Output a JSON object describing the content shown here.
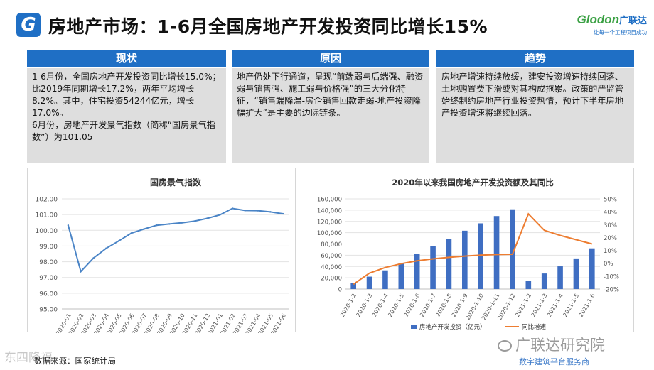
{
  "header": {
    "logo_letter": "G",
    "title": "房地产市场：1-6月全国房地产开发投资同比增长15%",
    "brand_name": "Glodon",
    "brand_cn": "广联达",
    "brand_slogan": "让每一个工程项目成功"
  },
  "columns": [
    {
      "heading": "现状",
      "paragraphs": [
        "1-6月份，全国房地产开发投资同比增长15.0%；比2019年同期增长17.2%，两年平均增长8.2%。其中，住宅投资54244亿元，增长17.0%。",
        "6月份，房地产开发景气指数（简称“国房景气指数”）为101.05"
      ]
    },
    {
      "heading": "原因",
      "paragraphs": [
        "地产仍处下行通道，呈现“前端弱与后端强、融资弱与销售强、施工弱与价格强”的三大分化特征，“销售端降温-房企销售回款走弱-地产投资降幅扩大”是主要的边际链条。"
      ]
    },
    {
      "heading": "趋势",
      "paragraphs": [
        "房地产增速持续放缓，建安投资增速持续回落、土地购置费下滑或对其构成拖累。政策的严监管始终制约房地产行业投资热情，预计下半年房地产投资增速将继续回落。"
      ]
    }
  ],
  "footer": {
    "source": "数据来源：国家统计局",
    "watermark_left": "东四降福",
    "watermark_right": "广联达研究院",
    "watermark_right_sub": "数字建筑平台服务商"
  },
  "chart_data": [
    {
      "type": "line",
      "title": "国房景气指数",
      "categories": [
        "2020-01",
        "2020-02",
        "2020-03",
        "2020-04",
        "2020-05",
        "2020-06",
        "2020-07",
        "2020-08",
        "2020-09",
        "2020-10",
        "2020-11",
        "2020-12",
        "2021-01",
        "2021-02",
        "2021-03",
        "2021-04",
        "2021-05",
        "2021-06"
      ],
      "series": [
        {
          "values": [
            100.32,
            97.38,
            98.23,
            98.85,
            99.32,
            99.82,
            100.08,
            100.32,
            100.4,
            100.48,
            100.58,
            100.76,
            100.98,
            101.39,
            101.26,
            101.25,
            101.17,
            101.05
          ]
        }
      ],
      "ylim": [
        95,
        102
      ],
      "yticks": [
        "95.00",
        "96.00",
        "97.00",
        "98.00",
        "99.00",
        "100.00",
        "101.00",
        "102.00"
      ],
      "line_color": "#4a84c6",
      "grid": true
    },
    {
      "type": "bar",
      "title": "2020年以来我国房地产开发投资额及其同比",
      "categories": [
        "2020-1-2",
        "2020-1-3",
        "2020-1-4",
        "2020-1-5",
        "2020-1-6",
        "2020-1-7",
        "2020-1-8",
        "2020-1-9",
        "2020-1-10",
        "2020-1-11",
        "2020-1-12",
        "2021-1-2",
        "2021-1-3",
        "2021-1-4",
        "2021-1-5",
        "2021-1-6"
      ],
      "series": [
        {
          "name": "房地产开发投资（亿元）",
          "type": "bar",
          "axis": "left",
          "color": "#3f6ec2",
          "values": [
            10115,
            21963,
            33103,
            45920,
            62780,
            75888,
            88454,
            103484,
            116556,
            129492,
            141443,
            13986,
            27576,
            40240,
            54318,
            72179
          ]
        },
        {
          "name": "同比增速",
          "type": "line",
          "axis": "right",
          "color": "#ed7d31",
          "values": [
            -16.3,
            -7.7,
            -3.3,
            -0.3,
            1.9,
            3.4,
            4.6,
            5.6,
            6.3,
            6.8,
            7.0,
            38.3,
            25.6,
            21.6,
            18.3,
            15.0
          ]
        }
      ],
      "ylim_left": [
        0,
        160000
      ],
      "yticks_left": [
        "0",
        "20,000",
        "40,000",
        "60,000",
        "80,000",
        "100,000",
        "120,000",
        "140,000",
        "160,000"
      ],
      "ylim_right": [
        -20,
        50
      ],
      "yticks_right": [
        "-20%",
        "-10%",
        "0%",
        "10%",
        "20%",
        "30%",
        "40%",
        "50%"
      ],
      "legend_position": "bottom",
      "grid": true
    }
  ]
}
